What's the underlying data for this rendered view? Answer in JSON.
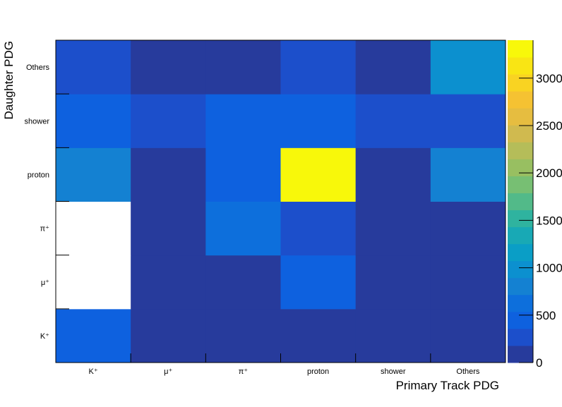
{
  "chart_data": {
    "type": "heatmap",
    "xlabel": "Primary Track PDG",
    "ylabel": "Daughter PDG",
    "x_categories": [
      "K⁺",
      "μ⁺",
      "π⁺",
      "proton",
      "shower",
      "Others"
    ],
    "y_categories": [
      "K⁺",
      "μ⁺",
      "π⁺",
      "proton",
      "shower",
      "Others"
    ],
    "values": [
      [
        400,
        30,
        30,
        30,
        30,
        30
      ],
      [
        0,
        30,
        30,
        450,
        30,
        30
      ],
      [
        0,
        30,
        700,
        300,
        30,
        30
      ],
      [
        750,
        30,
        400,
        3350,
        30,
        850
      ],
      [
        400,
        300,
        400,
        400,
        350,
        300
      ],
      [
        300,
        30,
        30,
        350,
        30,
        950
      ]
    ],
    "value_range": [
      0,
      3400
    ],
    "colorbar_ticks": [
      {
        "value": 0,
        "label": "0"
      },
      {
        "value": 500,
        "label": "500"
      },
      {
        "value": 1000,
        "label": "1000"
      },
      {
        "value": 1500,
        "label": "1500"
      },
      {
        "value": 2000,
        "label": "2000"
      },
      {
        "value": 2500,
        "label": "2500"
      },
      {
        "value": 3000,
        "label": "3000"
      }
    ],
    "palette": [
      "#273b9c",
      "#1c4fcb",
      "#0e61df",
      "#0d6fdc",
      "#1481d2",
      "#0c90cf",
      "#0a9ec6",
      "#18a9b5",
      "#2fb39f",
      "#52ba89",
      "#77bf73",
      "#98bf61",
      "#b5bd59",
      "#d0ba4f",
      "#e6bd40",
      "#f5c232",
      "#f9d322",
      "#f9e514",
      "#f8f80a"
    ],
    "zero_color": "#ffffff",
    "grid": false
  }
}
